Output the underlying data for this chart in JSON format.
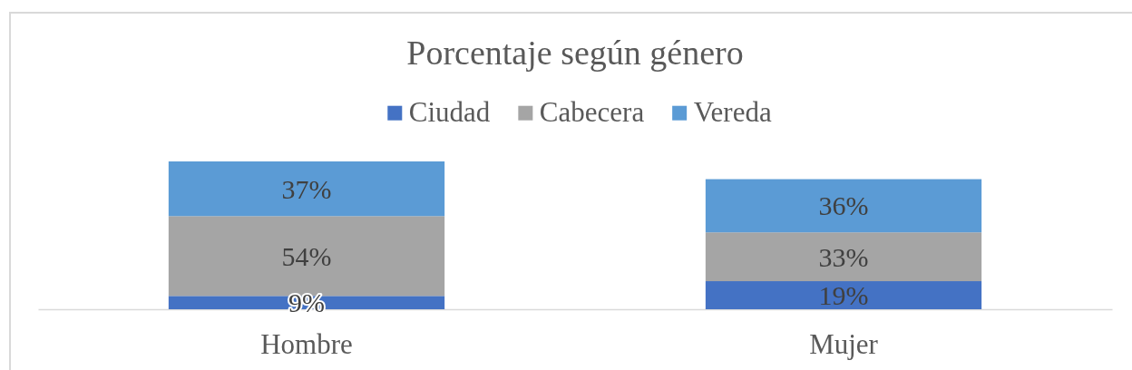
{
  "chart_data": {
    "type": "bar",
    "title": "Porcentaje según género",
    "categories": [
      "Hombre",
      "Mujer"
    ],
    "series": [
      {
        "name": "Ciudad",
        "color": "#4472c4",
        "values": [
          9,
          19
        ],
        "value_labels": [
          "9%",
          "19%"
        ]
      },
      {
        "name": "Cabecera",
        "color": "#a5a5a5",
        "values": [
          54,
          33
        ],
        "value_labels": [
          "54%",
          "33%"
        ]
      },
      {
        "name": "Vereda",
        "color": "#5b9bd5",
        "values": [
          37,
          36
        ],
        "value_labels": [
          "37%",
          "36%"
        ]
      }
    ],
    "stacked": true,
    "legend": "top",
    "tick_labels": "x"
  }
}
